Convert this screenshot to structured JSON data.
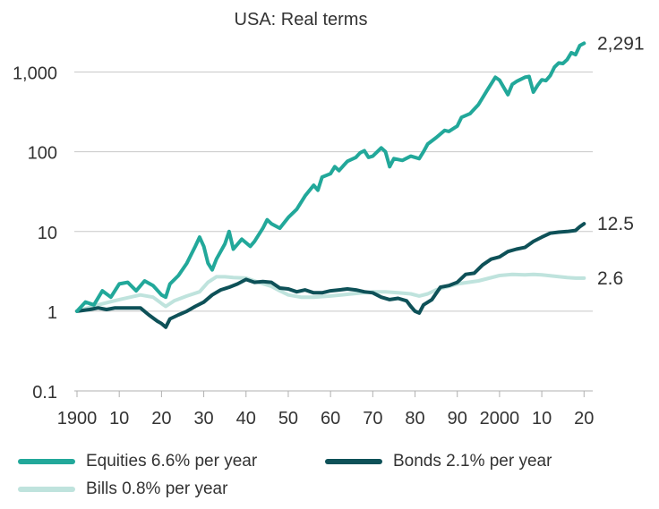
{
  "chart_data": {
    "type": "line",
    "title": "USA: Real terms",
    "xlabel": "",
    "ylabel": "",
    "y_scale": "log",
    "xlim": [
      1900,
      2021
    ],
    "ylim": [
      0.1,
      3000
    ],
    "grid": "horizontal",
    "y_ticks": [
      0.1,
      1,
      10,
      100,
      1000
    ],
    "y_tick_labels": [
      "0.1",
      "1",
      "10",
      "100",
      "1,000"
    ],
    "x_ticks": [
      1900,
      1910,
      1920,
      1930,
      1940,
      1950,
      1960,
      1970,
      1980,
      1990,
      2000,
      2010,
      2020
    ],
    "x_tick_labels": [
      "1900",
      "10",
      "20",
      "30",
      "40",
      "50",
      "60",
      "70",
      "80",
      "90",
      "2000",
      "10",
      "20"
    ],
    "series": [
      {
        "name": "Equities",
        "legend": "Equities  6.6% per year",
        "end_label": "2,291",
        "color": "#22a89a",
        "points": [
          [
            1900,
            1.0
          ],
          [
            1902,
            1.3
          ],
          [
            1904,
            1.2
          ],
          [
            1906,
            1.8
          ],
          [
            1908,
            1.5
          ],
          [
            1910,
            2.2
          ],
          [
            1912,
            2.3
          ],
          [
            1914,
            1.8
          ],
          [
            1916,
            2.4
          ],
          [
            1918,
            2.1
          ],
          [
            1920,
            1.6
          ],
          [
            1921,
            1.5
          ],
          [
            1922,
            2.2
          ],
          [
            1924,
            2.8
          ],
          [
            1926,
            4.0
          ],
          [
            1928,
            6.5
          ],
          [
            1929,
            8.5
          ],
          [
            1930,
            6.5
          ],
          [
            1931,
            4.0
          ],
          [
            1932,
            3.3
          ],
          [
            1933,
            4.5
          ],
          [
            1935,
            7.0
          ],
          [
            1936,
            10.0
          ],
          [
            1937,
            6.0
          ],
          [
            1939,
            8.0
          ],
          [
            1941,
            6.5
          ],
          [
            1942,
            7.5
          ],
          [
            1944,
            11.0
          ],
          [
            1945,
            14.0
          ],
          [
            1946,
            12.5
          ],
          [
            1948,
            11.0
          ],
          [
            1950,
            15.0
          ],
          [
            1952,
            19.0
          ],
          [
            1954,
            28.0
          ],
          [
            1956,
            38.0
          ],
          [
            1957,
            33.0
          ],
          [
            1958,
            48.0
          ],
          [
            1960,
            53.0
          ],
          [
            1961,
            65.0
          ],
          [
            1962,
            58.0
          ],
          [
            1964,
            76.0
          ],
          [
            1966,
            85.0
          ],
          [
            1967,
            97.0
          ],
          [
            1968,
            103.0
          ],
          [
            1969,
            85.0
          ],
          [
            1970,
            88.0
          ],
          [
            1972,
            112.0
          ],
          [
            1973,
            100.0
          ],
          [
            1974,
            65.0
          ],
          [
            1975,
            82.0
          ],
          [
            1977,
            78.0
          ],
          [
            1979,
            88.0
          ],
          [
            1981,
            82.0
          ],
          [
            1982,
            100.0
          ],
          [
            1983,
            125.0
          ],
          [
            1985,
            150.0
          ],
          [
            1987,
            185.0
          ],
          [
            1988,
            180.0
          ],
          [
            1990,
            210.0
          ],
          [
            1991,
            270.0
          ],
          [
            1993,
            300.0
          ],
          [
            1995,
            390.0
          ],
          [
            1997,
            580.0
          ],
          [
            1999,
            860.0
          ],
          [
            2000,
            790.0
          ],
          [
            2001,
            640.0
          ],
          [
            2002,
            520.0
          ],
          [
            2003,
            700.0
          ],
          [
            2004,
            760.0
          ],
          [
            2006,
            860.0
          ],
          [
            2007,
            880.0
          ],
          [
            2008,
            560.0
          ],
          [
            2009,
            680.0
          ],
          [
            2010,
            800.0
          ],
          [
            2011,
            780.0
          ],
          [
            2012,
            900.0
          ],
          [
            2013,
            1150.0
          ],
          [
            2014,
            1300.0
          ],
          [
            2015,
            1280.0
          ],
          [
            2016,
            1430.0
          ],
          [
            2017,
            1750.0
          ],
          [
            2018,
            1650.0
          ],
          [
            2019,
            2150.0
          ],
          [
            2020,
            2291.0
          ]
        ]
      },
      {
        "name": "Bonds",
        "legend": "Bonds 2.1% per year",
        "end_label": "12.5",
        "color": "#0e5158",
        "points": [
          [
            1900,
            1.0
          ],
          [
            1903,
            1.05
          ],
          [
            1905,
            1.1
          ],
          [
            1907,
            1.05
          ],
          [
            1909,
            1.1
          ],
          [
            1911,
            1.1
          ],
          [
            1913,
            1.1
          ],
          [
            1915,
            1.1
          ],
          [
            1917,
            0.9
          ],
          [
            1919,
            0.75
          ],
          [
            1920,
            0.7
          ],
          [
            1921,
            0.63
          ],
          [
            1922,
            0.8
          ],
          [
            1924,
            0.9
          ],
          [
            1926,
            1.0
          ],
          [
            1928,
            1.15
          ],
          [
            1930,
            1.3
          ],
          [
            1932,
            1.6
          ],
          [
            1934,
            1.85
          ],
          [
            1936,
            2.0
          ],
          [
            1938,
            2.2
          ],
          [
            1940,
            2.5
          ],
          [
            1942,
            2.3
          ],
          [
            1944,
            2.35
          ],
          [
            1946,
            2.3
          ],
          [
            1948,
            1.95
          ],
          [
            1950,
            1.9
          ],
          [
            1952,
            1.75
          ],
          [
            1954,
            1.85
          ],
          [
            1956,
            1.7
          ],
          [
            1958,
            1.7
          ],
          [
            1960,
            1.8
          ],
          [
            1962,
            1.85
          ],
          [
            1964,
            1.9
          ],
          [
            1966,
            1.85
          ],
          [
            1968,
            1.75
          ],
          [
            1970,
            1.7
          ],
          [
            1972,
            1.5
          ],
          [
            1974,
            1.4
          ],
          [
            1976,
            1.45
          ],
          [
            1978,
            1.35
          ],
          [
            1979,
            1.15
          ],
          [
            1980,
            1.0
          ],
          [
            1981,
            0.95
          ],
          [
            1982,
            1.2
          ],
          [
            1984,
            1.4
          ],
          [
            1986,
            2.0
          ],
          [
            1988,
            2.1
          ],
          [
            1990,
            2.3
          ],
          [
            1992,
            2.9
          ],
          [
            1994,
            3.0
          ],
          [
            1996,
            3.8
          ],
          [
            1998,
            4.5
          ],
          [
            2000,
            4.8
          ],
          [
            2002,
            5.6
          ],
          [
            2004,
            6.0
          ],
          [
            2006,
            6.3
          ],
          [
            2008,
            7.5
          ],
          [
            2010,
            8.5
          ],
          [
            2012,
            9.5
          ],
          [
            2014,
            9.8
          ],
          [
            2016,
            10.0
          ],
          [
            2018,
            10.3
          ],
          [
            2019,
            11.5
          ],
          [
            2020,
            12.5
          ]
        ]
      },
      {
        "name": "Bills",
        "legend": "Bills 0.8% per year",
        "end_label": "2.6",
        "color": "#bfe3dd",
        "points": [
          [
            1900,
            1.0
          ],
          [
            1905,
            1.2
          ],
          [
            1910,
            1.4
          ],
          [
            1915,
            1.6
          ],
          [
            1918,
            1.5
          ],
          [
            1920,
            1.25
          ],
          [
            1921,
            1.15
          ],
          [
            1923,
            1.35
          ],
          [
            1926,
            1.55
          ],
          [
            1929,
            1.75
          ],
          [
            1931,
            2.3
          ],
          [
            1933,
            2.7
          ],
          [
            1935,
            2.7
          ],
          [
            1937,
            2.65
          ],
          [
            1940,
            2.6
          ],
          [
            1943,
            2.3
          ],
          [
            1946,
            2.05
          ],
          [
            1948,
            1.8
          ],
          [
            1950,
            1.6
          ],
          [
            1953,
            1.5
          ],
          [
            1956,
            1.5
          ],
          [
            1960,
            1.55
          ],
          [
            1965,
            1.65
          ],
          [
            1970,
            1.75
          ],
          [
            1973,
            1.75
          ],
          [
            1976,
            1.7
          ],
          [
            1979,
            1.65
          ],
          [
            1981,
            1.55
          ],
          [
            1983,
            1.65
          ],
          [
            1985,
            1.85
          ],
          [
            1988,
            2.05
          ],
          [
            1990,
            2.2
          ],
          [
            1995,
            2.4
          ],
          [
            2000,
            2.8
          ],
          [
            2003,
            2.9
          ],
          [
            2006,
            2.85
          ],
          [
            2008,
            2.9
          ],
          [
            2010,
            2.85
          ],
          [
            2013,
            2.75
          ],
          [
            2016,
            2.65
          ],
          [
            2018,
            2.6
          ],
          [
            2020,
            2.6
          ]
        ]
      }
    ]
  }
}
